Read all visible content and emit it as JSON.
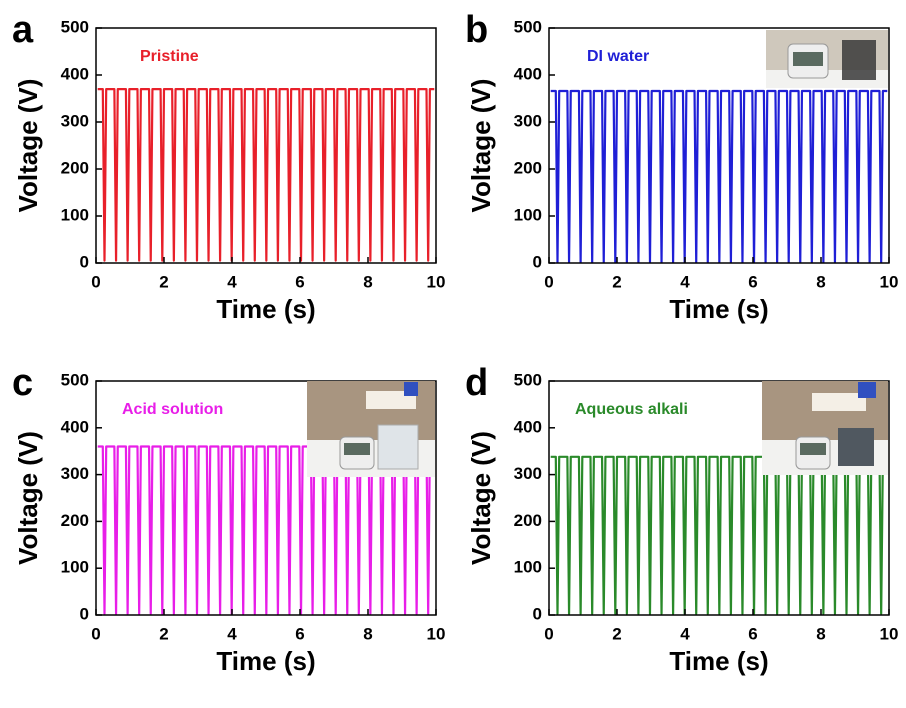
{
  "chart_data": [
    {
      "type": "line",
      "panel": "a",
      "xlabel": "Time (s)",
      "ylabel": "Voltage (V)",
      "xlim": [
        0,
        10
      ],
      "xticks": [
        0,
        2,
        4,
        6,
        8,
        10
      ],
      "ylim": [
        0,
        500
      ],
      "yticks": [
        0,
        100,
        200,
        300,
        400,
        500
      ],
      "x": [
        0.05,
        0.2,
        0.25,
        0.3,
        0.54,
        0.59,
        0.64,
        0.88,
        0.93,
        0.98,
        1.22,
        1.27,
        1.32,
        1.56,
        1.61,
        1.66,
        1.9,
        1.95,
        2.0,
        2.24,
        2.29,
        2.34,
        2.58,
        2.63,
        2.68,
        2.92,
        2.97,
        3.02,
        3.26,
        3.31,
        3.36,
        3.6,
        3.65,
        3.7,
        3.94,
        3.99,
        4.04,
        4.28,
        4.33,
        4.38,
        4.62,
        4.67,
        4.72,
        4.96,
        5.01,
        5.06,
        5.3,
        5.35,
        5.4,
        5.64,
        5.69,
        5.74,
        5.98,
        6.03,
        6.08,
        6.32,
        6.37,
        6.42,
        6.66,
        6.71,
        6.76,
        7.0,
        7.05,
        7.1,
        7.34,
        7.39,
        7.44,
        7.68,
        7.73,
        7.78,
        8.02,
        8.07,
        8.12,
        8.36,
        8.41,
        8.46,
        8.7,
        8.75,
        8.8,
        9.04,
        9.09,
        9.14,
        9.38,
        9.43,
        9.48,
        9.72,
        9.77,
        9.82,
        9.95
      ],
      "series": [
        {
          "name": "Pristine",
          "color": "#e8202a",
          "values": [
            370,
            370,
            5,
            370,
            370,
            5,
            370,
            370,
            5,
            370,
            370,
            5,
            370,
            370,
            5,
            370,
            370,
            5,
            370,
            370,
            5,
            370,
            370,
            5,
            370,
            370,
            5,
            370,
            370,
            5,
            370,
            370,
            5,
            370,
            370,
            5,
            370,
            370,
            5,
            370,
            370,
            5,
            370,
            370,
            5,
            370,
            370,
            5,
            370,
            370,
            5,
            370,
            370,
            5,
            370,
            370,
            5,
            370,
            370,
            5,
            370,
            370,
            5,
            370,
            370,
            5,
            370,
            370,
            5,
            370,
            370,
            5,
            370,
            370,
            5,
            370,
            370,
            5,
            370,
            370,
            5,
            370,
            370,
            5,
            370,
            370,
            5,
            370,
            370
          ]
        }
      ]
    },
    {
      "type": "line",
      "panel": "b",
      "xlabel": "Time (s)",
      "ylabel": "Voltage (V)",
      "xlim": [
        0,
        10
      ],
      "xticks": [
        0,
        2,
        4,
        6,
        8,
        10
      ],
      "ylim": [
        0,
        500
      ],
      "yticks": [
        0,
        100,
        200,
        300,
        400,
        500
      ],
      "x": [
        0.05,
        0.2,
        0.25,
        0.3,
        0.54,
        0.59,
        0.64,
        0.88,
        0.93,
        0.98,
        1.22,
        1.27,
        1.32,
        1.56,
        1.61,
        1.66,
        1.9,
        1.95,
        2.0,
        2.24,
        2.29,
        2.34,
        2.58,
        2.63,
        2.68,
        2.92,
        2.97,
        3.02,
        3.26,
        3.31,
        3.36,
        3.6,
        3.65,
        3.7,
        3.94,
        3.99,
        4.04,
        4.28,
        4.33,
        4.38,
        4.62,
        4.67,
        4.72,
        4.96,
        5.01,
        5.06,
        5.3,
        5.35,
        5.4,
        5.64,
        5.69,
        5.74,
        5.98,
        6.03,
        6.08,
        6.32,
        6.37,
        6.42,
        6.66,
        6.71,
        6.76,
        7.0,
        7.05,
        7.1,
        7.34,
        7.39,
        7.44,
        7.68,
        7.73,
        7.78,
        8.02,
        8.07,
        8.12,
        8.36,
        8.41,
        8.46,
        8.7,
        8.75,
        8.8,
        9.04,
        9.09,
        9.14,
        9.38,
        9.43,
        9.48,
        9.72,
        9.77,
        9.82,
        9.95
      ],
      "series": [
        {
          "name": "DI water",
          "color": "#1f1fd6",
          "values": [
            366,
            366,
            2,
            366,
            366,
            2,
            366,
            366,
            2,
            366,
            366,
            2,
            366,
            366,
            2,
            366,
            366,
            2,
            366,
            366,
            2,
            366,
            366,
            2,
            366,
            366,
            2,
            366,
            366,
            2,
            366,
            366,
            2,
            366,
            366,
            2,
            366,
            366,
            2,
            366,
            366,
            2,
            366,
            366,
            2,
            366,
            366,
            2,
            366,
            366,
            2,
            366,
            366,
            2,
            366,
            366,
            2,
            366,
            366,
            2,
            366,
            366,
            2,
            366,
            366,
            2,
            366,
            366,
            2,
            366,
            366,
            2,
            366,
            366,
            2,
            366,
            366,
            2,
            366,
            366,
            2,
            366,
            366,
            2,
            366,
            366,
            2,
            366,
            366
          ]
        }
      ]
    },
    {
      "type": "line",
      "panel": "c",
      "xlabel": "Time (s)",
      "ylabel": "Voltage (V)",
      "xlim": [
        0,
        10
      ],
      "xticks": [
        0,
        2,
        4,
        6,
        8,
        10
      ],
      "ylim": [
        0,
        500
      ],
      "yticks": [
        0,
        100,
        200,
        300,
        400,
        500
      ],
      "x": [
        0.05,
        0.2,
        0.25,
        0.3,
        0.54,
        0.59,
        0.64,
        0.88,
        0.93,
        0.98,
        1.22,
        1.27,
        1.32,
        1.56,
        1.61,
        1.66,
        1.9,
        1.95,
        2.0,
        2.24,
        2.29,
        2.34,
        2.58,
        2.63,
        2.68,
        2.92,
        2.97,
        3.02,
        3.26,
        3.31,
        3.36,
        3.6,
        3.65,
        3.7,
        3.94,
        3.99,
        4.04,
        4.28,
        4.33,
        4.38,
        4.62,
        4.67,
        4.72,
        4.96,
        5.01,
        5.06,
        5.3,
        5.35,
        5.4,
        5.64,
        5.69,
        5.74,
        5.98,
        6.03,
        6.08,
        6.32,
        6.37,
        6.42,
        6.66,
        6.71,
        6.76,
        7.0,
        7.05,
        7.1,
        7.34,
        7.39,
        7.44,
        7.68,
        7.73,
        7.78,
        8.02,
        8.07,
        8.12,
        8.36,
        8.41,
        8.46,
        8.7,
        8.75,
        8.8,
        9.04,
        9.09,
        9.14,
        9.38,
        9.43,
        9.48,
        9.72,
        9.77,
        9.82,
        9.95
      ],
      "series": [
        {
          "name": "Acid solution",
          "color": "#e81ee8",
          "values": [
            360,
            360,
            3,
            360,
            360,
            3,
            360,
            360,
            3,
            360,
            360,
            3,
            360,
            360,
            3,
            360,
            360,
            3,
            360,
            360,
            3,
            360,
            360,
            3,
            360,
            360,
            3,
            360,
            360,
            3,
            360,
            360,
            3,
            360,
            360,
            3,
            360,
            360,
            3,
            360,
            360,
            3,
            360,
            360,
            3,
            360,
            360,
            3,
            360,
            360,
            3,
            360,
            360,
            3,
            360,
            360,
            3,
            360,
            360,
            3,
            360,
            360,
            3,
            360,
            360,
            3,
            360,
            360,
            3,
            360,
            360,
            3,
            360,
            360,
            3,
            360,
            360,
            3,
            360,
            360,
            3,
            360,
            360,
            3,
            360,
            360,
            3,
            360,
            360
          ]
        }
      ]
    },
    {
      "type": "line",
      "panel": "d",
      "xlabel": "Time (s)",
      "ylabel": "Voltage (V)",
      "xlim": [
        0,
        10
      ],
      "xticks": [
        0,
        2,
        4,
        6,
        8,
        10
      ],
      "ylim": [
        0,
        500
      ],
      "yticks": [
        0,
        100,
        200,
        300,
        400,
        500
      ],
      "x": [
        0.05,
        0.2,
        0.25,
        0.3,
        0.54,
        0.59,
        0.64,
        0.88,
        0.93,
        0.98,
        1.22,
        1.27,
        1.32,
        1.56,
        1.61,
        1.66,
        1.9,
        1.95,
        2.0,
        2.24,
        2.29,
        2.34,
        2.58,
        2.63,
        2.68,
        2.92,
        2.97,
        3.02,
        3.26,
        3.31,
        3.36,
        3.6,
        3.65,
        3.7,
        3.94,
        3.99,
        4.04,
        4.28,
        4.33,
        4.38,
        4.62,
        4.67,
        4.72,
        4.96,
        5.01,
        5.06,
        5.3,
        5.35,
        5.4,
        5.64,
        5.69,
        5.74,
        5.98,
        6.03,
        6.08,
        6.32,
        6.37,
        6.42,
        6.66,
        6.71,
        6.76,
        7.0,
        7.05,
        7.1,
        7.34,
        7.39,
        7.44,
        7.68,
        7.73,
        7.78,
        8.02,
        8.07,
        8.12,
        8.36,
        8.41,
        8.46,
        8.7,
        8.75,
        8.8,
        9.04,
        9.09,
        9.14,
        9.38,
        9.43,
        9.48,
        9.72,
        9.77,
        9.82,
        9.95
      ],
      "series": [
        {
          "name": "Aqueous alkali",
          "color": "#2a8a2a",
          "values": [
            338,
            338,
            3,
            338,
            338,
            3,
            338,
            338,
            3,
            338,
            338,
            3,
            338,
            338,
            3,
            338,
            338,
            3,
            338,
            338,
            3,
            338,
            338,
            3,
            338,
            338,
            3,
            338,
            338,
            3,
            338,
            338,
            3,
            338,
            338,
            3,
            338,
            338,
            3,
            338,
            338,
            3,
            338,
            338,
            3,
            338,
            338,
            3,
            338,
            338,
            3,
            338,
            338,
            3,
            338,
            338,
            3,
            338,
            338,
            3,
            338,
            338,
            3,
            338,
            338,
            3,
            338,
            338,
            3,
            338,
            338,
            3,
            338,
            338,
            3,
            338,
            338,
            3,
            338,
            338,
            3,
            338,
            338,
            3,
            338,
            338,
            3,
            338,
            338
          ]
        }
      ]
    }
  ]
}
